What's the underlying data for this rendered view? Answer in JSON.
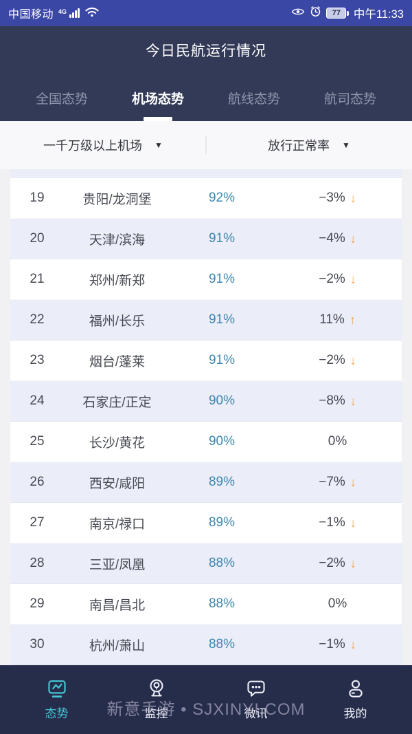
{
  "status_bar": {
    "carrier": "中国移动",
    "network": "4G",
    "battery": "77",
    "time": "中午11:33"
  },
  "header": {
    "title": "今日民航运行情况",
    "tabs": [
      {
        "label": "全国态势",
        "active": false
      },
      {
        "label": "机场态势",
        "active": true
      },
      {
        "label": "航线态势",
        "active": false
      },
      {
        "label": "航司态势",
        "active": false
      }
    ]
  },
  "filters": {
    "airport_level": "一千万级以上机场",
    "metric": "放行正常率",
    "caret_icon": "▼"
  },
  "table": {
    "rows": [
      {
        "rank": "19",
        "airport": "贵阳/龙洞堡",
        "rate": "92%",
        "change": "−3%",
        "trend": "down"
      },
      {
        "rank": "20",
        "airport": "天津/滨海",
        "rate": "91%",
        "change": "−4%",
        "trend": "down"
      },
      {
        "rank": "21",
        "airport": "郑州/新郑",
        "rate": "91%",
        "change": "−2%",
        "trend": "down"
      },
      {
        "rank": "22",
        "airport": "福州/长乐",
        "rate": "91%",
        "change": "11%",
        "trend": "up"
      },
      {
        "rank": "23",
        "airport": "烟台/蓬莱",
        "rate": "91%",
        "change": "−2%",
        "trend": "down"
      },
      {
        "rank": "24",
        "airport": "石家庄/正定",
        "rate": "90%",
        "change": "−8%",
        "trend": "down"
      },
      {
        "rank": "25",
        "airport": "长沙/黄花",
        "rate": "90%",
        "change": "0%",
        "trend": "flat"
      },
      {
        "rank": "26",
        "airport": "西安/咸阳",
        "rate": "89%",
        "change": "−7%",
        "trend": "down"
      },
      {
        "rank": "27",
        "airport": "南京/禄口",
        "rate": "89%",
        "change": "−1%",
        "trend": "down"
      },
      {
        "rank": "28",
        "airport": "三亚/凤凰",
        "rate": "88%",
        "change": "−2%",
        "trend": "down"
      },
      {
        "rank": "29",
        "airport": "南昌/昌北",
        "rate": "88%",
        "change": "0%",
        "trend": "flat"
      },
      {
        "rank": "30",
        "airport": "杭州/萧山",
        "rate": "88%",
        "change": "−1%",
        "trend": "down"
      }
    ]
  },
  "bottom_nav": {
    "items": [
      {
        "label": "态势",
        "icon": "trend-monitor-icon",
        "active": true
      },
      {
        "label": "监控",
        "icon": "webcam-icon",
        "active": false
      },
      {
        "label": "微讯",
        "icon": "chat-bubble-icon",
        "active": false
      },
      {
        "label": "我的",
        "icon": "profile-icon",
        "active": false
      }
    ]
  },
  "watermark": "新意手游 • SJXINYI.COM",
  "colors": {
    "status_bar_bg": "#3b47a5",
    "header_bg": "#323a57",
    "nav_bg": "#262d4b",
    "accent_teal": "#45c4d3",
    "rate_blue": "#3e86ae",
    "arrow_orange": "#f0a14b",
    "row_alt_bg": "#ebedf8"
  }
}
